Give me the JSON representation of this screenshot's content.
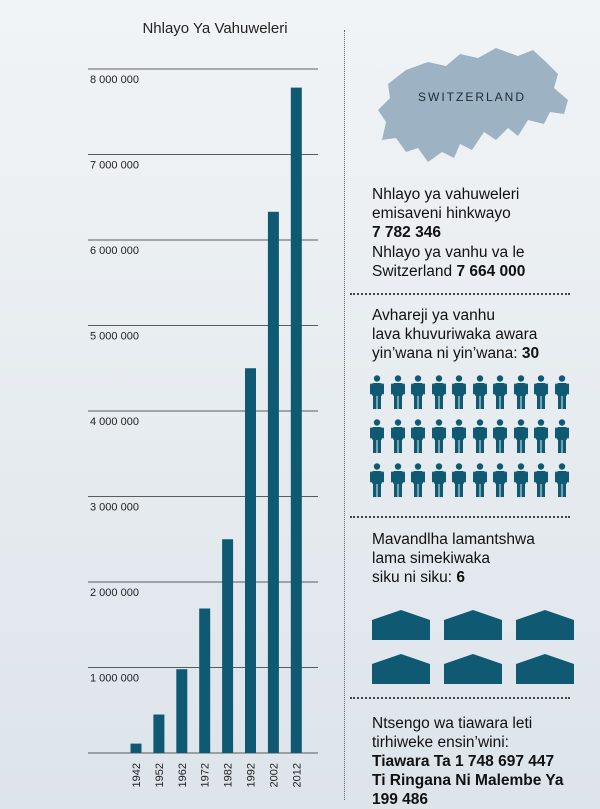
{
  "chart_data": {
    "type": "bar",
    "title": "Nhlayo Ya Vahuweleri",
    "categories": [
      "1942",
      "1952",
      "1962",
      "1972",
      "1982",
      "1992",
      "2002",
      "2012"
    ],
    "values": [
      110000,
      450000,
      980000,
      1690000,
      2500000,
      4500000,
      6330000,
      7782346
    ],
    "ylim": [
      0,
      8000000
    ],
    "yticks": [
      "1 000 000",
      "2 000 000",
      "3 000 000",
      "4 000 000",
      "5 000 000",
      "6 000 000",
      "7 000 000",
      "8 000 000"
    ],
    "ytick_values": [
      1000000,
      2000000,
      3000000,
      4000000,
      5000000,
      6000000,
      7000000,
      8000000
    ],
    "grid": true,
    "bar_color": "#0f5a72"
  },
  "map": {
    "label": "SWITZERLAND",
    "color": "#9db3c3"
  },
  "facts": {
    "users_line1": "Nhlayo ya vahuweleri",
    "users_line2": "emisaveni hinkwayo",
    "users_value": "7 782 346",
    "pop_line1": "Nhlayo ya vanhu va le",
    "pop_line2": "Switzerland ",
    "pop_value": "7 664 000",
    "avg_line1": "Avhareji ya vanhu",
    "avg_line2": "lava khuvuriwaka awara",
    "avg_line3": "yin’wana ni yin’wana: ",
    "avg_value": "30",
    "person_count": 30,
    "person_icon": "person-icon",
    "houses_line1": "Mavandlha lamantshwa",
    "houses_line2": "lama simekiwaka",
    "houses_line3": "siku ni siku: ",
    "houses_value": "6",
    "house_count": 6,
    "house_icon": "house-icon",
    "docs_line1": "Ntsengo wa tiawara leti",
    "docs_line2": "tirhiweke ensin’wini:",
    "docs_value1": "Tiawara Ta 1 748 697 447",
    "docs_value2": "Ti Ringana Ni Malembe Ya",
    "docs_value3": "199 486"
  },
  "colors": {
    "accent": "#0f5a72",
    "background": "#e6ecf0"
  }
}
